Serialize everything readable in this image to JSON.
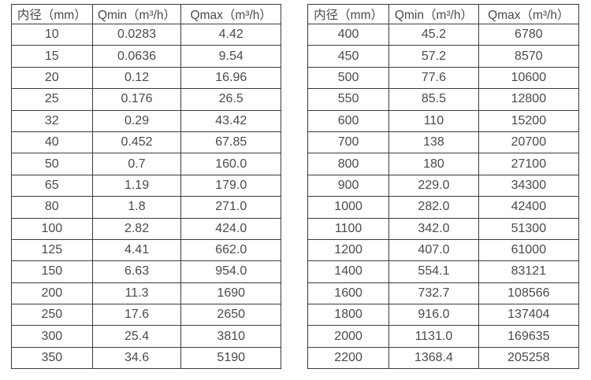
{
  "colors": {
    "background": "#ffffff",
    "border": "#3b3b3b",
    "text": "#4a4a4a"
  },
  "tables": [
    {
      "name": "small-diameters",
      "headers": [
        "内径（mm）",
        "Qmin（m³/h）",
        "Qmax（m³/h）"
      ],
      "rows": [
        [
          "10",
          "0.0283",
          "4.42"
        ],
        [
          "15",
          "0.0636",
          "9.54"
        ],
        [
          "20",
          "0.12",
          "16.96"
        ],
        [
          "25",
          "0.176",
          "26.5"
        ],
        [
          "32",
          "0.29",
          "43.42"
        ],
        [
          "40",
          "0.452",
          "67.85"
        ],
        [
          "50",
          "0.7",
          "160.0"
        ],
        [
          "65",
          "1.19",
          "179.0"
        ],
        [
          "80",
          "1.8",
          "271.0"
        ],
        [
          "100",
          "2.82",
          "424.0"
        ],
        [
          "125",
          "4.41",
          "662.0"
        ],
        [
          "150",
          "6.63",
          "954.0"
        ],
        [
          "200",
          "11.3",
          "1690"
        ],
        [
          "250",
          "17.6",
          "2650"
        ],
        [
          "300",
          "25.4",
          "3810"
        ],
        [
          "350",
          "34.6",
          "5190"
        ]
      ]
    },
    {
      "name": "large-diameters",
      "headers": [
        "内径（mm）",
        "Qmin（m³/h）",
        "Qmax（m³/h）"
      ],
      "rows": [
        [
          "400",
          "45.2",
          "6780"
        ],
        [
          "450",
          "57.2",
          "8570"
        ],
        [
          "500",
          "77.6",
          "10600"
        ],
        [
          "550",
          "85.5",
          "12800"
        ],
        [
          "600",
          "110",
          "15200"
        ],
        [
          "700",
          "138",
          "20700"
        ],
        [
          "800",
          "180",
          "27100"
        ],
        [
          "900",
          "229.0",
          "34300"
        ],
        [
          "1000",
          "282.0",
          "42400"
        ],
        [
          "1100",
          "342.0",
          "51300"
        ],
        [
          "1200",
          "407.0",
          "61000"
        ],
        [
          "1400",
          "554.1",
          "83121"
        ],
        [
          "1600",
          "732.7",
          "108566"
        ],
        [
          "1800",
          "916.0",
          "137404"
        ],
        [
          "2000",
          "1131.0",
          "169635"
        ],
        [
          "2200",
          "1368.4",
          "205258"
        ]
      ]
    }
  ]
}
